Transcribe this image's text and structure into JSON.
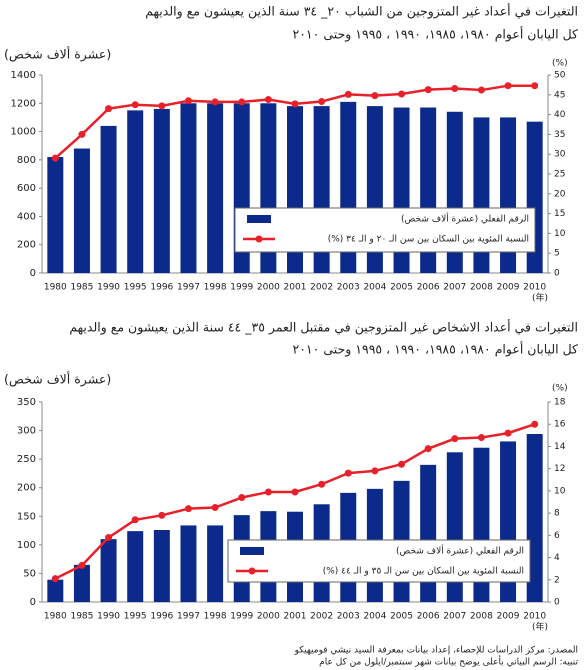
{
  "chart_data": [
    {
      "type": "combo",
      "title": "التغيرات في أعداد غير المتزوجين من الشباب ٢٠_ ٣٤ سنة الذين يعيشون مع والديهم",
      "subtitle": "كل اليابان  أعوام ١٩٨٠، ١٩٨٥، ١٩٩٠ ، ١٩٩٥ وحتى ٢٠١٠",
      "ylabel": "(عشرة ألاف شخص)",
      "y2label": "(%)",
      "xlabel": "(年)",
      "categories": [
        "1980",
        "1985",
        "1990",
        "1995",
        "1996",
        "1997",
        "1998",
        "1999",
        "2000",
        "2001",
        "2002",
        "2003",
        "2004",
        "2005",
        "2006",
        "2007",
        "2008",
        "2009",
        "2010"
      ],
      "series": [
        {
          "name": "الرقم الفعلي (عشرة ألاف شخص)",
          "color": "#0b2a8c",
          "axis": "y",
          "values": [
            820,
            880,
            1040,
            1150,
            1160,
            1200,
            1200,
            1200,
            1200,
            1180,
            1180,
            1210,
            1180,
            1170,
            1170,
            1140,
            1100,
            1100,
            1070
          ]
        },
        {
          "name": "النسبة المئوية بين السكان بين سن الـ ٢٠ و الـ ٣٤ (%)",
          "color": "#e8202a",
          "axis": "y2",
          "values": [
            29,
            35,
            41.5,
            42.5,
            42.2,
            43.5,
            43.2,
            43.2,
            43.8,
            42.7,
            43.3,
            45.1,
            44.8,
            45.2,
            46.3,
            46.6,
            46.2,
            47.3,
            47.3
          ]
        }
      ],
      "ylim": [
        0,
        1400
      ],
      "yticks": [
        0,
        200,
        400,
        600,
        800,
        1000,
        1200,
        1400
      ],
      "y2lim": [
        0,
        50
      ],
      "y2ticks": [
        0,
        5,
        10,
        15,
        20,
        25,
        30,
        35,
        40,
        45,
        50
      ],
      "grid": false
    },
    {
      "type": "combo",
      "title": "التغيرات في أعداد الاشخاص غير المتزوجين في مقتبل العمر ٣٥_ ٤٤ سنة الذين يعيشون مع والديهم",
      "subtitle": "كل اليابان  أعوام ١٩٨٠، ١٩٨٥، ١٩٩٠ ، ١٩٩٥ وحتى ٢٠١٠",
      "ylabel": "(عشرة ألاف شخص)",
      "y2label": "(%)",
      "xlabel": "(年)",
      "categories": [
        "1980",
        "1985",
        "1990",
        "1995",
        "1996",
        "1997",
        "1998",
        "1999",
        "2000",
        "2001",
        "2002",
        "2003",
        "2004",
        "2005",
        "2006",
        "2007",
        "2008",
        "2009",
        "2010"
      ],
      "series": [
        {
          "name": "الرقم الفعلي (عشرة ألاف شخص)",
          "color": "#0b2a8c",
          "axis": "y",
          "values": [
            39,
            65,
            110,
            124,
            126,
            134,
            134,
            152,
            159,
            158,
            171,
            191,
            198,
            212,
            240,
            262,
            270,
            281,
            294
          ]
        },
        {
          "name": "النسبة المئوية بين السكان بين سن الـ ٣٥ و الـ ٤٤ (%)",
          "color": "#e8202a",
          "axis": "y2",
          "values": [
            2.1,
            3.3,
            5.8,
            7.4,
            7.8,
            8.4,
            8.5,
            9.4,
            9.9,
            9.9,
            10.6,
            11.6,
            11.8,
            12.4,
            13.8,
            14.7,
            14.8,
            15.2,
            16.0
          ]
        }
      ],
      "ylim": [
        0,
        350
      ],
      "yticks": [
        0,
        50,
        100,
        150,
        200,
        250,
        300,
        350
      ],
      "y2lim": [
        0,
        18
      ],
      "y2ticks": [
        0,
        2,
        4,
        6,
        8,
        10,
        12,
        14,
        16,
        18
      ],
      "grid": false
    }
  ],
  "source": [
    "المصدر: مركز الدراسات للإحصاء، إعداد بيانات بمعرفة السيد نيشي فوميهيكو",
    "تنبيه: الرسم البياني بأعلى يوضح بيانات شهر سبتمبر/ايلول  من كل عام"
  ]
}
